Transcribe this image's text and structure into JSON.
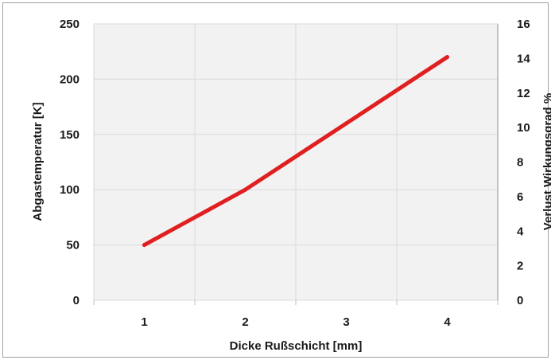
{
  "chart_data": {
    "type": "line",
    "title": "",
    "xlabel": "Dicke Rußschicht [mm]",
    "ylabel": "Abgastemperatur [K]",
    "y2label": "Verlust Wirkungsgrad %",
    "x": [
      1,
      2,
      3,
      4
    ],
    "x_ticks": [
      "1",
      "2",
      "3",
      "4"
    ],
    "xlim": [
      0.5,
      4.5
    ],
    "ylim": [
      0,
      250
    ],
    "y_ticks": [
      "0",
      "50",
      "100",
      "150",
      "200",
      "250"
    ],
    "y2lim": [
      0,
      16
    ],
    "y2_ticks": [
      "0",
      "2",
      "4",
      "6",
      "8",
      "10",
      "12",
      "14",
      "16"
    ],
    "grid": true,
    "series": [
      {
        "values": [
          50,
          100,
          160,
          220
        ],
        "color": "#e02020",
        "axis": "left"
      }
    ]
  }
}
